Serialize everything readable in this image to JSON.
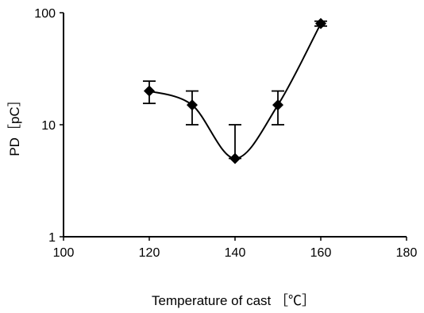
{
  "chart_data": {
    "type": "line",
    "xlabel": "Temperature of cast ［℃］",
    "ylabel": "PD［pC］",
    "xlim": [
      100,
      180
    ],
    "ylim": [
      1,
      100
    ],
    "yscale": "log",
    "xticks": [
      "100",
      "120",
      "140",
      "160",
      "180"
    ],
    "yticks": [
      "1",
      "10",
      "100"
    ],
    "grid": false,
    "series": [
      {
        "marker": "diamond",
        "color": "#000000",
        "smooth": true,
        "x": [
          120,
          130,
          140,
          150,
          160
        ],
        "y": [
          20,
          15,
          5,
          15,
          80
        ],
        "err_low": [
          15.5,
          10,
          5,
          10,
          76
        ],
        "err_high": [
          24.5,
          20,
          10,
          20,
          84
        ]
      }
    ]
  }
}
